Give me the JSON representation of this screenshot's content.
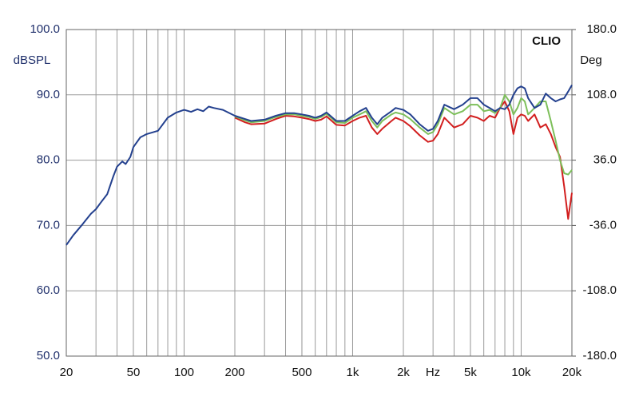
{
  "chart_data": {
    "type": "line",
    "annotation": "CLIO",
    "ylabel": "dBSPL",
    "y2label": "Deg",
    "xlabel": "Hz",
    "xscale": "log",
    "grid": true,
    "xlim": [
      20,
      20000
    ],
    "xticks": [
      20,
      50,
      100,
      200,
      500,
      {
        "value": 1000,
        "label": "1k"
      },
      {
        "value": 2000,
        "label": "2k"
      },
      {
        "value": 5000,
        "label": "5k"
      },
      {
        "value": 10000,
        "label": "10k"
      },
      {
        "value": 20000,
        "label": "20k"
      }
    ],
    "ylim": [
      50,
      100
    ],
    "yticks": [
      {
        "value": 50,
        "label": "50.0"
      },
      {
        "value": 60,
        "label": "60.0"
      },
      {
        "value": 70,
        "label": "70.0"
      },
      {
        "value": 80,
        "label": "80.0"
      },
      {
        "value": 90,
        "label": "90.0"
      },
      {
        "value": 100,
        "label": "100.0"
      }
    ],
    "y2lim": [
      -180,
      180
    ],
    "y2ticks": [
      {
        "value": -180,
        "label": "-180.0"
      },
      {
        "value": -108,
        "label": "-108.0"
      },
      {
        "value": -36,
        "label": "-36.0"
      },
      {
        "value": 36,
        "label": "36.0"
      },
      {
        "value": 108,
        "label": "108.0"
      },
      {
        "value": 180,
        "label": "180.0"
      }
    ],
    "x": [
      20,
      22,
      25,
      28,
      30,
      32,
      35,
      38,
      40,
      43,
      45,
      48,
      50,
      55,
      60,
      70,
      80,
      90,
      100,
      110,
      120,
      130,
      140,
      150,
      170,
      200,
      230,
      250,
      300,
      350,
      400,
      450,
      500,
      550,
      600,
      650,
      700,
      800,
      900,
      1000,
      1100,
      1200,
      1300,
      1400,
      1500,
      1700,
      1800,
      2000,
      2200,
      2500,
      2800,
      3000,
      3200,
      3500,
      4000,
      4500,
      5000,
      5500,
      6000,
      6500,
      7000,
      7500,
      8000,
      8500,
      9000,
      9500,
      10000,
      10500,
      11000,
      12000,
      13000,
      14000,
      15000,
      16000,
      17000,
      18000,
      19000,
      20000
    ],
    "series": [
      {
        "color": "#d21f1f",
        "values": [
          null,
          null,
          null,
          null,
          null,
          null,
          null,
          null,
          null,
          null,
          null,
          null,
          null,
          null,
          null,
          null,
          null,
          null,
          null,
          null,
          null,
          null,
          null,
          null,
          null,
          86.5,
          85.8,
          85.5,
          85.6,
          86.3,
          86.8,
          86.7,
          86.5,
          86.3,
          86.0,
          86.2,
          86.7,
          85.4,
          85.3,
          86.0,
          86.5,
          86.8,
          85.0,
          84.0,
          84.8,
          86.0,
          86.5,
          86.0,
          85.2,
          83.8,
          82.8,
          83.0,
          84.0,
          86.5,
          85.0,
          85.5,
          86.8,
          86.5,
          86.0,
          86.8,
          86.5,
          88.0,
          89.0,
          87.5,
          84.0,
          86.5,
          87.0,
          86.8,
          86.0,
          87.0,
          85.0,
          85.5,
          84.0,
          82.0,
          80.5,
          76.0,
          71.0,
          75.0
        ]
      },
      {
        "color": "#7dbf5a",
        "values": [
          null,
          null,
          null,
          null,
          null,
          null,
          null,
          null,
          null,
          null,
          null,
          null,
          null,
          null,
          null,
          null,
          null,
          null,
          null,
          null,
          null,
          null,
          null,
          null,
          null,
          86.7,
          86.1,
          85.8,
          86.0,
          86.6,
          87.0,
          87.0,
          86.8,
          86.6,
          86.3,
          86.6,
          87.1,
          85.8,
          85.7,
          86.5,
          87.0,
          87.5,
          86.0,
          85.0,
          86.0,
          87.0,
          87.3,
          87.0,
          86.3,
          85.0,
          84.0,
          84.3,
          85.5,
          88.0,
          87.0,
          87.5,
          88.5,
          88.5,
          87.5,
          87.7,
          87.2,
          88.0,
          90.0,
          89.0,
          87.0,
          88.0,
          89.5,
          89.0,
          87.0,
          88.0,
          89.0,
          89.0,
          86.0,
          83.0,
          80.0,
          78.0,
          77.8,
          78.5
        ]
      },
      {
        "color": "#23408e",
        "values": [
          67.0,
          68.5,
          70.2,
          71.8,
          72.5,
          73.5,
          74.8,
          77.5,
          79.0,
          79.8,
          79.4,
          80.5,
          82.0,
          83.5,
          84.0,
          84.5,
          86.5,
          87.3,
          87.7,
          87.4,
          87.8,
          87.5,
          88.2,
          88.0,
          87.7,
          86.8,
          86.3,
          86.0,
          86.2,
          86.8,
          87.2,
          87.2,
          87.0,
          86.8,
          86.5,
          86.8,
          87.3,
          86.0,
          86.0,
          86.8,
          87.5,
          88.0,
          86.5,
          85.5,
          86.5,
          87.5,
          88.0,
          87.7,
          87.0,
          85.5,
          84.5,
          84.8,
          86.0,
          88.5,
          87.8,
          88.5,
          89.5,
          89.5,
          88.5,
          88.0,
          87.5,
          88.0,
          87.8,
          88.5,
          90.0,
          91.0,
          91.3,
          91.0,
          89.5,
          88.0,
          88.5,
          90.2,
          89.5,
          89.0,
          89.3,
          89.5,
          90.5,
          91.5
        ]
      }
    ]
  }
}
